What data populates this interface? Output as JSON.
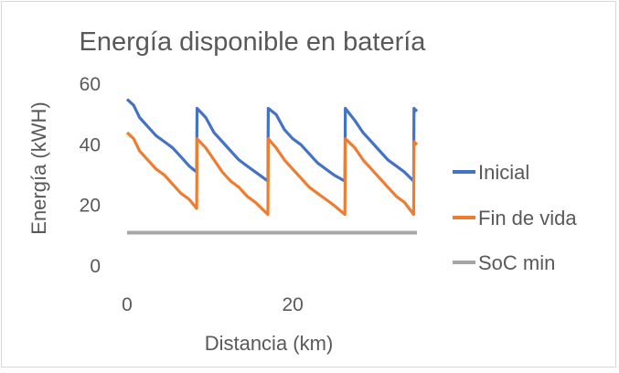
{
  "chart_data": {
    "type": "line",
    "title": "Energía disponible en batería",
    "xlabel": "Distancia (km)",
    "ylabel": "Energía (kWH)",
    "xlim": [
      0,
      35
    ],
    "ylim": [
      0,
      60
    ],
    "x_ticks": [
      0,
      20
    ],
    "y_ticks": [
      0,
      20,
      40,
      60
    ],
    "grid": false,
    "legend_position": "right",
    "series": [
      {
        "name": "Inicial",
        "color": "#4472C4",
        "points": [
          [
            0,
            55
          ],
          [
            0.8,
            53
          ],
          [
            1.5,
            49
          ],
          [
            2.5,
            46
          ],
          [
            3.5,
            43
          ],
          [
            4.5,
            41
          ],
          [
            5.5,
            39
          ],
          [
            6.5,
            36
          ],
          [
            7.5,
            33
          ],
          [
            8.4,
            31
          ],
          [
            8.45,
            52
          ],
          [
            9.5,
            49
          ],
          [
            10.5,
            44
          ],
          [
            11.5,
            41
          ],
          [
            12.5,
            38
          ],
          [
            13.5,
            35
          ],
          [
            14.5,
            33
          ],
          [
            15.5,
            31
          ],
          [
            17.0,
            28
          ],
          [
            17.05,
            52
          ],
          [
            18.0,
            50
          ],
          [
            19.0,
            45
          ],
          [
            20.0,
            42
          ],
          [
            21.0,
            40
          ],
          [
            22.0,
            37
          ],
          [
            23.0,
            34
          ],
          [
            24.0,
            32
          ],
          [
            25.0,
            30
          ],
          [
            26.3,
            28
          ],
          [
            26.35,
            52
          ],
          [
            27.5,
            48
          ],
          [
            28.5,
            44
          ],
          [
            29.5,
            41
          ],
          [
            30.5,
            38
          ],
          [
            31.5,
            35
          ],
          [
            32.5,
            33
          ],
          [
            33.5,
            31
          ],
          [
            34.6,
            28
          ],
          [
            34.65,
            52
          ],
          [
            35,
            51
          ]
        ]
      },
      {
        "name": "Fin de vida",
        "color": "#ED7D31",
        "points": [
          [
            0,
            44
          ],
          [
            0.8,
            42
          ],
          [
            1.5,
            38
          ],
          [
            2.5,
            35
          ],
          [
            3.5,
            32
          ],
          [
            4.5,
            30
          ],
          [
            5.5,
            27
          ],
          [
            6.5,
            24
          ],
          [
            7.5,
            22
          ],
          [
            8.4,
            19
          ],
          [
            8.45,
            42
          ],
          [
            9.5,
            39
          ],
          [
            10.5,
            35
          ],
          [
            11.5,
            31
          ],
          [
            12.5,
            28
          ],
          [
            13.5,
            26
          ],
          [
            14.5,
            23
          ],
          [
            15.5,
            21
          ],
          [
            17.0,
            17
          ],
          [
            17.05,
            42
          ],
          [
            18.0,
            39
          ],
          [
            19.0,
            35
          ],
          [
            20.0,
            32
          ],
          [
            21.0,
            29
          ],
          [
            22.0,
            26
          ],
          [
            23.0,
            24
          ],
          [
            24.0,
            22
          ],
          [
            25.0,
            20
          ],
          [
            26.3,
            17
          ],
          [
            26.35,
            42
          ],
          [
            27.5,
            39
          ],
          [
            28.5,
            35
          ],
          [
            29.5,
            32
          ],
          [
            30.5,
            29
          ],
          [
            31.5,
            26
          ],
          [
            32.5,
            23
          ],
          [
            33.5,
            21
          ],
          [
            34.6,
            17
          ],
          [
            34.65,
            41
          ],
          [
            35,
            40
          ]
        ]
      },
      {
        "name": "SoC min",
        "color": "#A5A5A5",
        "points": [
          [
            0,
            11
          ],
          [
            35,
            11
          ]
        ]
      }
    ]
  }
}
